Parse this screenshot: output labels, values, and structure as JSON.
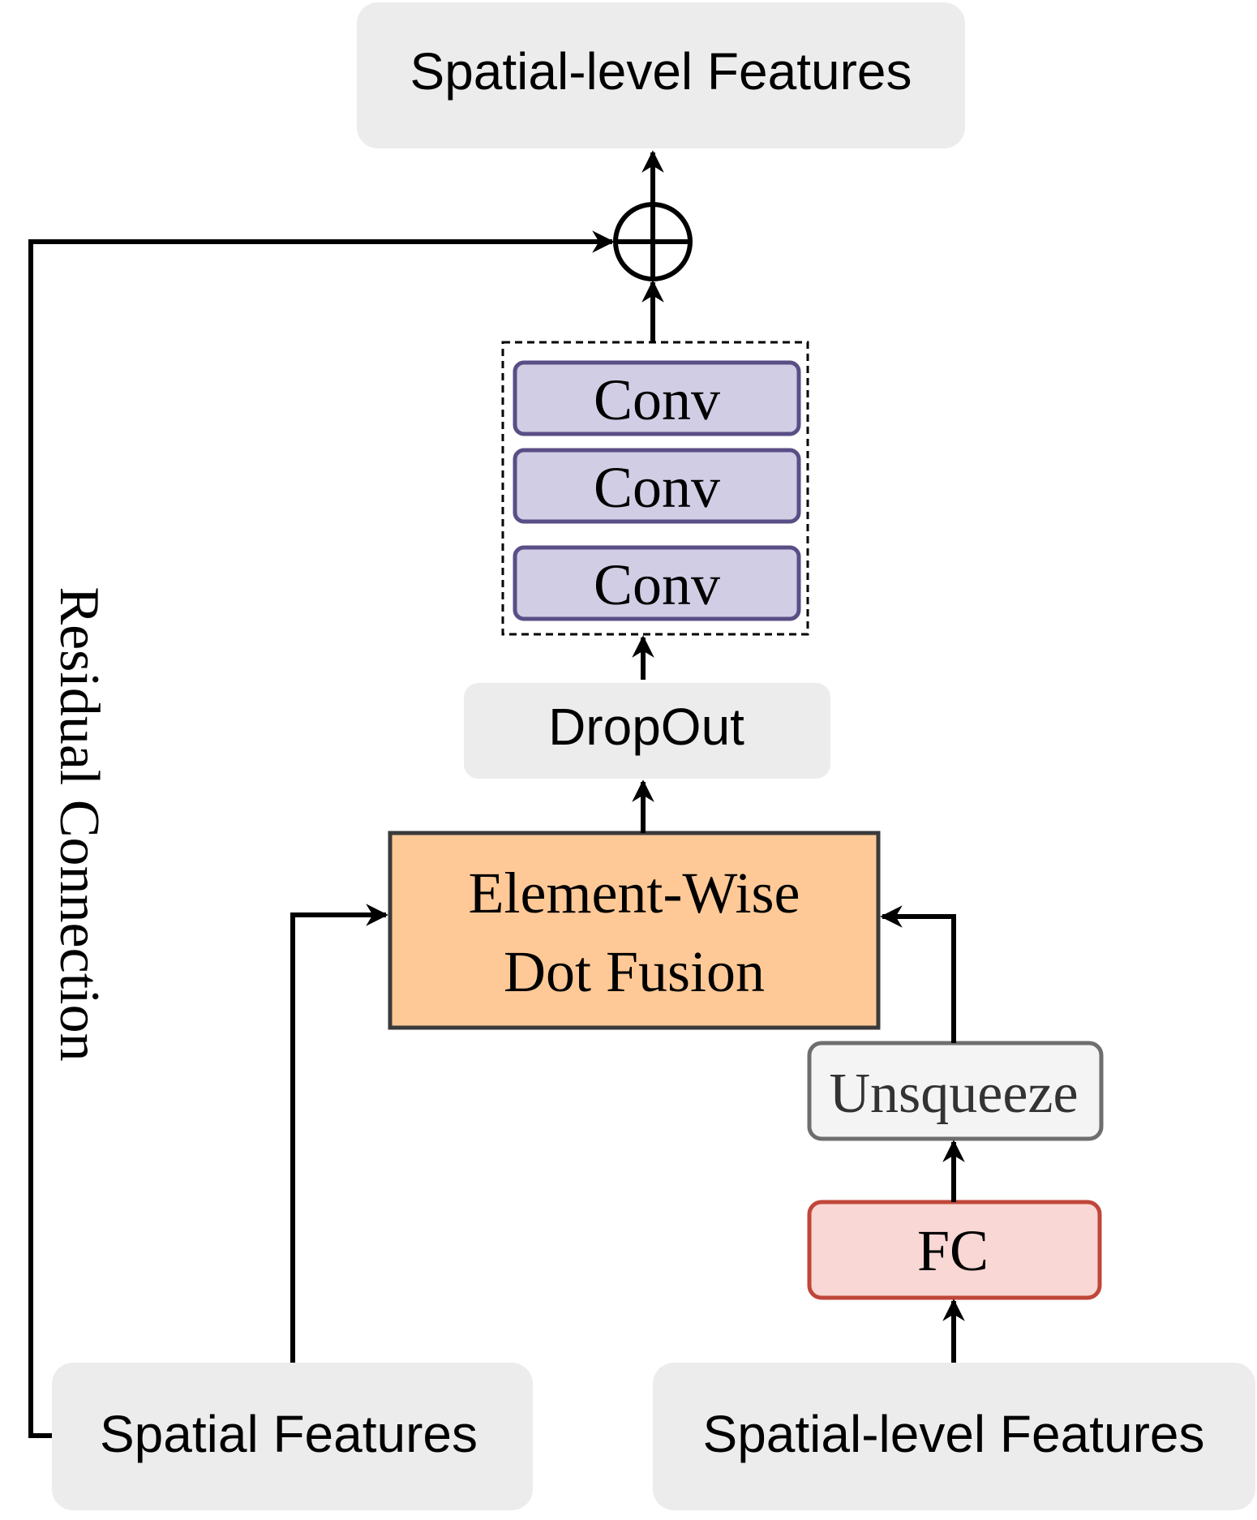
{
  "diagram": {
    "nodes": {
      "output": {
        "label": "Spatial-level Features"
      },
      "conv_block": {
        "layers": [
          {
            "label": "Conv"
          },
          {
            "label": "Conv"
          },
          {
            "label": "Conv"
          }
        ]
      },
      "dropout": {
        "label": "DropOut"
      },
      "fusion": {
        "line1": "Element-Wise",
        "line2": "Dot Fusion"
      },
      "unsqueeze": {
        "label": "Unsqueeze"
      },
      "fc": {
        "label": "FC"
      },
      "input_spatial": {
        "label": "Spatial Features"
      },
      "input_spatial_level": {
        "label": "Spatial-level Features"
      }
    },
    "residual_label": "Residual Connection",
    "colors": {
      "gray_box": "#ececec",
      "conv_fill": "#d1cde4",
      "conv_stroke": "#5a4e86",
      "fusion_fill": "#ffc997",
      "fusion_stroke": "#3a3a3a",
      "unsqueeze_fill": "#f4f4f4",
      "unsqueeze_stroke": "#6e6e6e",
      "fc_fill": "#f8d7d4",
      "fc_stroke": "#c0463a",
      "line": "#000000"
    }
  }
}
